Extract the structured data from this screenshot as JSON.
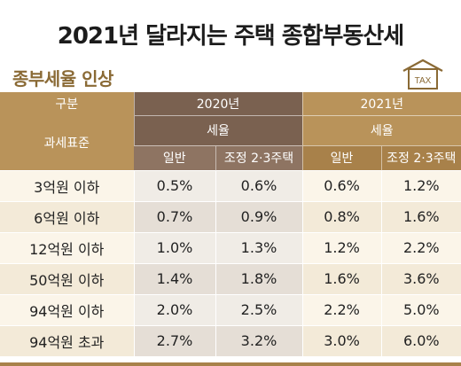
{
  "title": "2021년 달라지는 주택 종합부동산세",
  "subtitle": "종부세율 인상",
  "icon": {
    "name": "house-tax-icon",
    "label": "TAX",
    "color": "#8a6a35"
  },
  "table": {
    "col_category": "구분",
    "col_base": "과세표준",
    "years": [
      "2020년",
      "2021년"
    ],
    "rate_label": "세율",
    "sub_cols": [
      "일반",
      "조정 2·3주택"
    ],
    "rows": [
      {
        "label": "3억원 이하",
        "v": [
          "0.5%",
          "0.6%",
          "0.6%",
          "1.2%"
        ]
      },
      {
        "label": "6억원 이하",
        "v": [
          "0.7%",
          "0.9%",
          "0.8%",
          "1.6%"
        ]
      },
      {
        "label": "12억원 이하",
        "v": [
          "1.0%",
          "1.3%",
          "1.2%",
          "2.2%"
        ]
      },
      {
        "label": "50억원 이하",
        "v": [
          "1.4%",
          "1.8%",
          "1.6%",
          "3.6%"
        ]
      },
      {
        "label": "94억원 이하",
        "v": [
          "2.0%",
          "2.5%",
          "2.2%",
          "5.0%"
        ]
      },
      {
        "label": "94억원 초과",
        "v": [
          "2.7%",
          "3.2%",
          "3.0%",
          "6.0%"
        ]
      }
    ]
  },
  "colors": {
    "gold": "#b9935a",
    "brown": "#7a6150",
    "row_light": "#fbf5e9",
    "row_dark": "#f3ead8"
  }
}
